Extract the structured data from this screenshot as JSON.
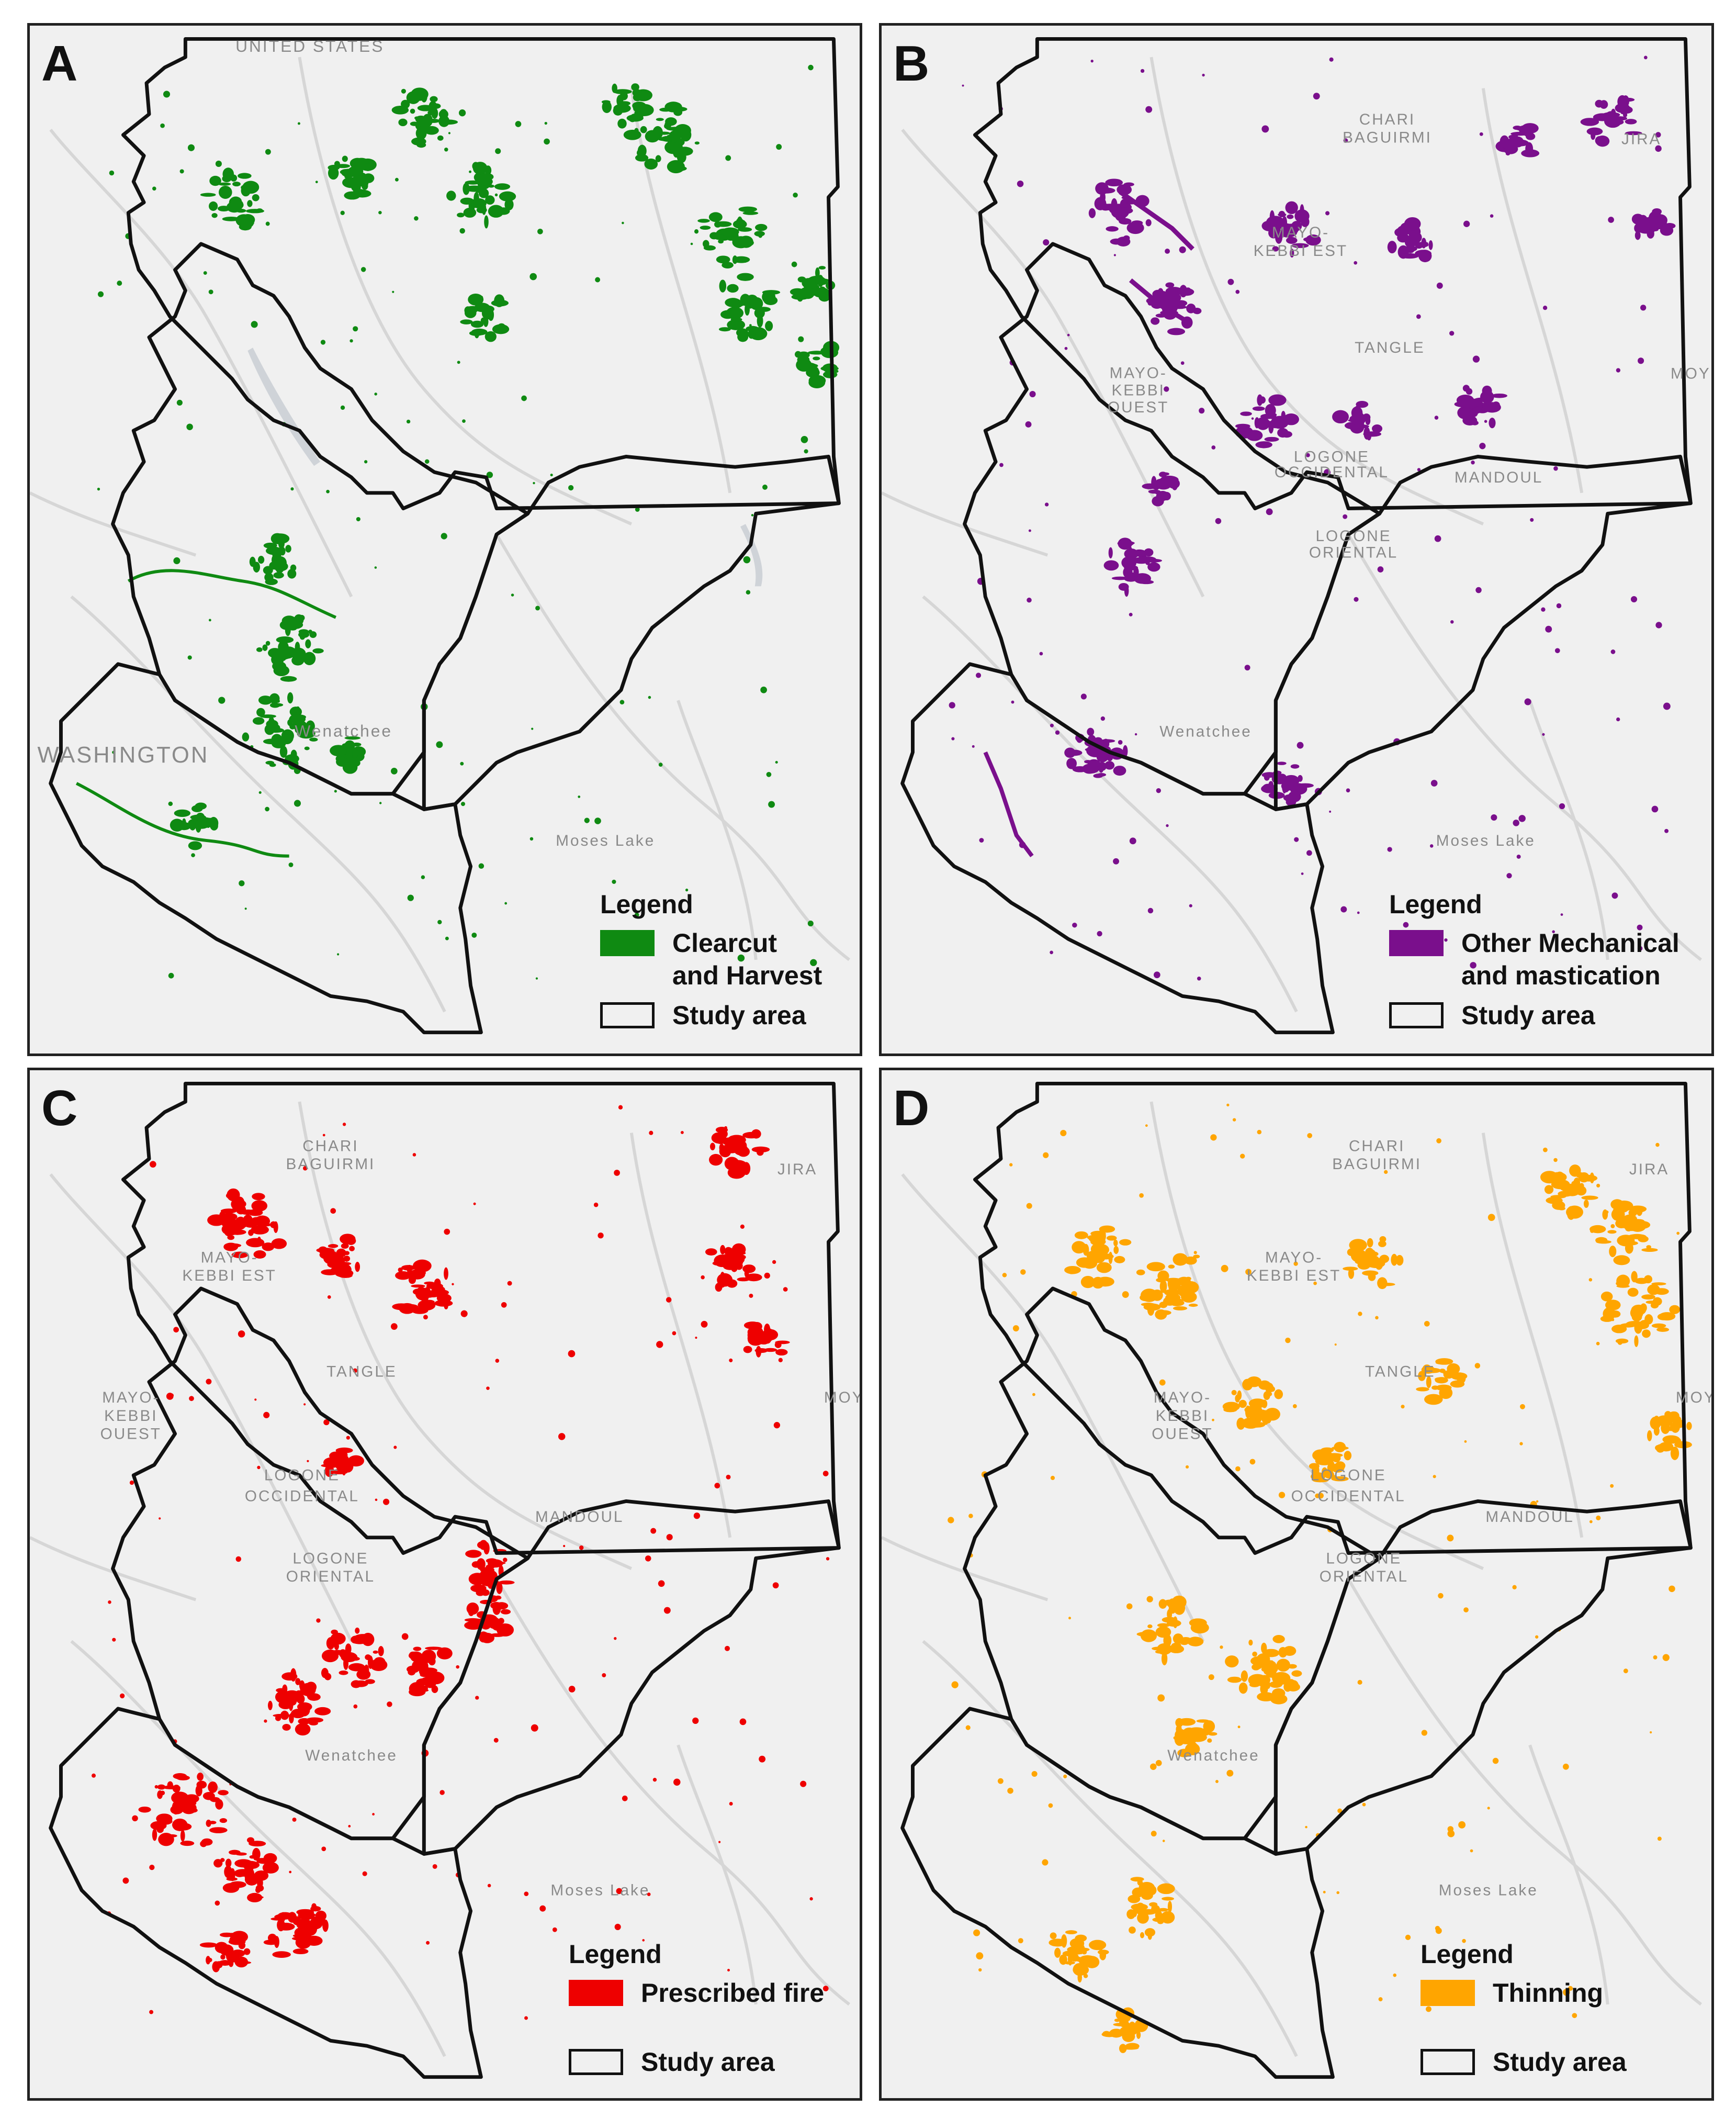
{
  "panels": [
    {
      "letter": "A",
      "treatment_label_line1": "Clearcut",
      "treatment_label_line2": "and Harvest",
      "treatment_color": "#0f8a12",
      "study_area_label": "Study area",
      "legend_title": "Legend",
      "place_labels": [
        "UNITED STATES",
        "WASHINGTON",
        "Wenatchee",
        "Moses Lake"
      ]
    },
    {
      "letter": "B",
      "treatment_label_line1": "Other Mechanical",
      "treatment_label_line2": "and mastication",
      "treatment_color": "#7a0f8c",
      "study_area_label": "Study area",
      "legend_title": "Legend",
      "place_labels": [
        "CHARI",
        "BAGUIRMI",
        "MAYO-",
        "KEBBI EST",
        "TANGLE",
        "MAYO-",
        "KEBBI",
        "OUEST",
        "LOGONE",
        "OCCIDENTAL",
        "MANDOUL",
        "LOGONE",
        "ORIENTAL",
        "Wenatchee",
        "Moses Lake",
        "JIRA",
        "MOY"
      ]
    },
    {
      "letter": "C",
      "treatment_label_line1": "Prescribed fire",
      "treatment_label_line2": "",
      "treatment_color": "#ee0000",
      "study_area_label": "Study area",
      "legend_title": "Legend",
      "place_labels": [
        "CHARI",
        "BAGUIRMI",
        "MAYO-",
        "KEBBI EST",
        "TANGLE",
        "MAYO-",
        "KEBBI",
        "OUEST",
        "LOGONE",
        "OCCIDENTAL",
        "MANDOUL",
        "LOGONE",
        "ORIENTAL",
        "Wenatchee",
        "Moses Lake",
        "JIRA",
        "MOY"
      ]
    },
    {
      "letter": "D",
      "treatment_label_line1": "Thinning",
      "treatment_label_line2": "",
      "treatment_color": "#ffa500",
      "study_area_label": "Study area",
      "legend_title": "Legend",
      "place_labels": [
        "CHARI",
        "BAGUIRMI",
        "MAYO-",
        "KEBBI EST",
        "TANGLE",
        "MAYO-",
        "KEBBI",
        "OUEST",
        "LOGONE",
        "OCCIDENTAL",
        "MANDOUL",
        "LOGONE",
        "ORIENTAL",
        "Wenatchee",
        "Moses Lake",
        "JIRA",
        "MOY"
      ]
    }
  ]
}
